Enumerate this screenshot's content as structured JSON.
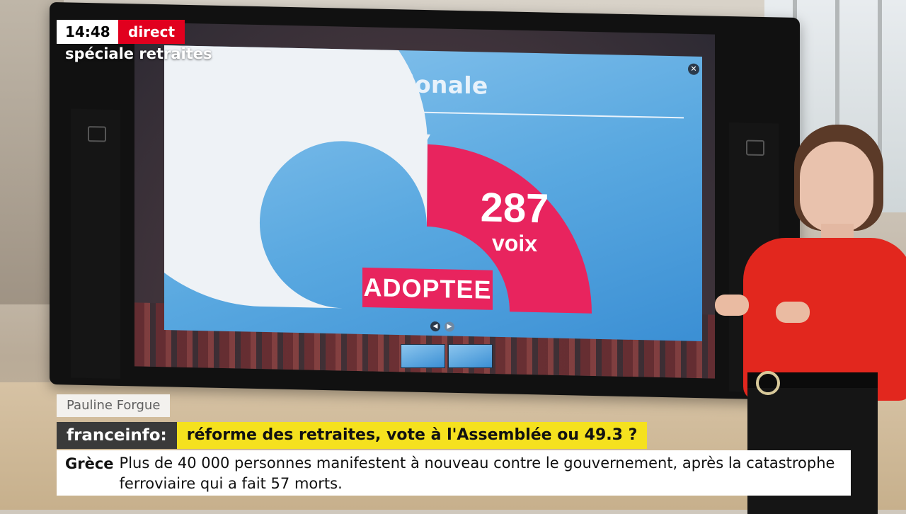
{
  "overlay": {
    "time": "14:48",
    "live_label": "direct",
    "programme": "spéciale retraites"
  },
  "presenter": {
    "name": "Pauline Forgue"
  },
  "headline": {
    "channel": "franceinfo:",
    "text": "réforme des retraites, vote à l'Assemblée ou 49.3 ?"
  },
  "ticker": {
    "topic": "Grèce",
    "text": "Plus de 40 000 personnes manifestent à nouveau contre le gouvernement, après la catastrophe ferroviaire qui a fait 57 morts."
  },
  "screen_graphic": {
    "title": "Assemblée Nationale",
    "result_label": "ADOPTEE",
    "vote_count": "287",
    "vote_unit": "voix",
    "close_icon": "close-icon",
    "colors": {
      "background": "#59a8e0",
      "for": "#e8245e",
      "remaining": "#eef2f6"
    }
  },
  "chart_data": {
    "type": "pie",
    "categories": [
      "voix",
      ""
    ],
    "values": [
      287,
      290
    ],
    "half_circle": true,
    "title": "Assemblée Nationale"
  },
  "colors": {
    "live_red": "#e1001e",
    "headline_yellow": "#f5e11e",
    "channel_grey": "#3a3a3a",
    "sweater_red": "#e2271e"
  }
}
